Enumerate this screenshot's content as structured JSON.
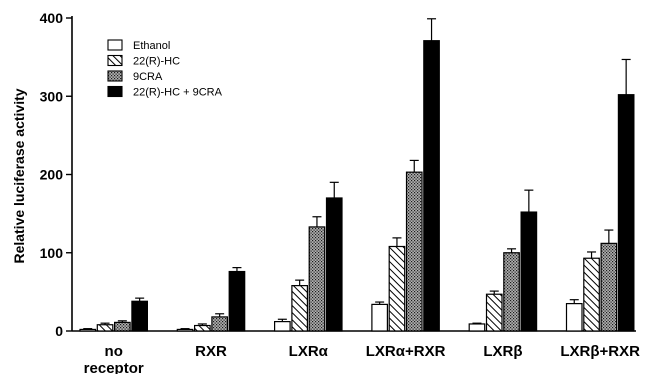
{
  "chart_data": {
    "type": "bar",
    "ylabel": "Relative luciferase activity",
    "xlabel": "",
    "ylim": [
      0,
      400
    ],
    "yticks": [
      0,
      100,
      200,
      300,
      400
    ],
    "categories": [
      "no receptor",
      "RXR",
      "LXRα",
      "LXRα+RXR",
      "LXRβ",
      "LXRβ+RXR"
    ],
    "legend_position": "top-left",
    "grid": false,
    "series": [
      {
        "name": "Ethanol",
        "pattern": "open",
        "values": [
          2,
          2,
          12,
          34,
          9,
          35
        ],
        "errors": [
          1,
          1,
          3,
          3,
          1,
          5
        ]
      },
      {
        "name": "22(R)-HC",
        "pattern": "hatched",
        "values": [
          8,
          7,
          58,
          108,
          47,
          93
        ],
        "errors": [
          2,
          2,
          7,
          11,
          4,
          8
        ]
      },
      {
        "name": "9CRA",
        "pattern": "stippled",
        "values": [
          11,
          18,
          133,
          203,
          100,
          112
        ],
        "errors": [
          2,
          4,
          13,
          15,
          5,
          17
        ]
      },
      {
        "name": "22(R)-HC + 9CRA",
        "pattern": "solid",
        "values": [
          38,
          76,
          170,
          371,
          152,
          302
        ],
        "errors": [
          4,
          5,
          20,
          28,
          28,
          45
        ]
      }
    ]
  }
}
